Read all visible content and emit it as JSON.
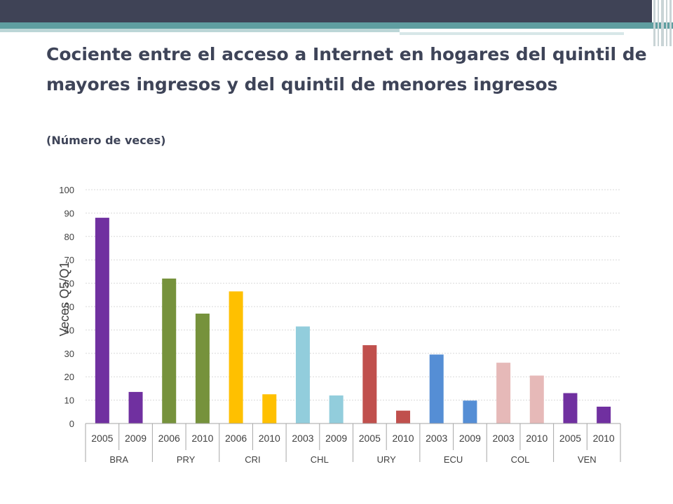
{
  "title": "Cociente entre el acceso a Internet en hogares del quintil de mayores ingresos y del quintil de menores ingresos",
  "subtitle": "(Número de veces)",
  "chart_data": {
    "type": "bar",
    "ylabel": "Veces Q5/Q1",
    "xlabel": "",
    "ylim": [
      0,
      100
    ],
    "yticks": [
      "0",
      "10",
      "20",
      "30",
      "40",
      "50",
      "60",
      "70",
      "80",
      "90",
      "100"
    ],
    "grid": true,
    "groups": [
      {
        "name": "BRA",
        "color": "#7030a0",
        "bars": [
          {
            "year": "2005",
            "value": 88
          },
          {
            "year": "2009",
            "value": 13.5
          }
        ]
      },
      {
        "name": "PRY",
        "color": "#76923c",
        "bars": [
          {
            "year": "2006",
            "value": 62
          },
          {
            "year": "2010",
            "value": 47
          }
        ]
      },
      {
        "name": "CRI",
        "color": "#ffc000",
        "bars": [
          {
            "year": "2006",
            "value": 56.5
          },
          {
            "year": "2010",
            "value": 12.5
          }
        ]
      },
      {
        "name": "CHL",
        "color": "#92cddc",
        "bars": [
          {
            "year": "2003",
            "value": 41.5
          },
          {
            "year": "2009",
            "value": 12
          }
        ]
      },
      {
        "name": "URY",
        "color": "#c0504d",
        "bars": [
          {
            "year": "2005",
            "value": 33.5
          },
          {
            "year": "2010",
            "value": 5.5
          }
        ]
      },
      {
        "name": "ECU",
        "color": "#558ed5",
        "bars": [
          {
            "year": "2003",
            "value": 29.5
          },
          {
            "year": "2009",
            "value": 9.8
          }
        ]
      },
      {
        "name": "COL",
        "color": "#e6b9b8",
        "bars": [
          {
            "year": "2003",
            "value": 26
          },
          {
            "year": "2010",
            "value": 20.5
          }
        ]
      },
      {
        "name": "VEN",
        "color": "#7030a0",
        "bars": [
          {
            "year": "2005",
            "value": 13
          },
          {
            "year": "2010",
            "value": 7.2
          }
        ]
      }
    ]
  }
}
